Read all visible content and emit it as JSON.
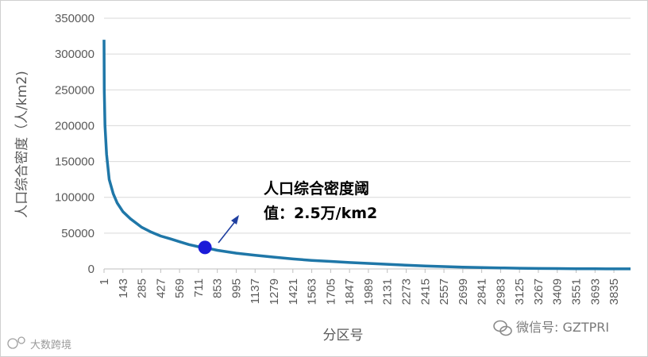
{
  "colors": {
    "line": "#1f77a8",
    "marker": "#1b1bd8",
    "arrow": "#1f3fa0",
    "grid": "#d9d9d9",
    "text": "#595959"
  },
  "chart_data": {
    "type": "line",
    "xlabel": "分区号",
    "ylabel": "人口综合密度（人/km2)",
    "ylim": [
      0,
      350000
    ],
    "yticks": [
      "0",
      "50000",
      "100000",
      "150000",
      "200000",
      "250000",
      "300000",
      "350000"
    ],
    "xticks": [
      "1",
      "143",
      "285",
      "427",
      "569",
      "711",
      "853",
      "995",
      "1137",
      "1279",
      "1421",
      "1563",
      "1705",
      "1847",
      "1989",
      "2131",
      "2273",
      "2415",
      "2557",
      "2699",
      "2841",
      "2983",
      "3125",
      "3267",
      "3409",
      "3551",
      "3693",
      "3835"
    ],
    "xlim": [
      1,
      3960
    ],
    "grid": "horizontal",
    "series": [
      {
        "x": [
          1,
          3,
          8,
          20,
          40,
          70,
          100,
          143,
          200,
          285,
          350,
          427,
          500,
          569,
          640,
          711,
          780,
          853,
          995,
          1137,
          1279,
          1421,
          1563,
          1705,
          1847,
          1989,
          2131,
          2273,
          2415,
          2557,
          2699,
          2841,
          2983,
          3125,
          3267,
          3409,
          3551,
          3693,
          3835,
          3960
        ],
        "values": [
          320000,
          250000,
          200000,
          160000,
          125000,
          105000,
          92000,
          80000,
          70000,
          58000,
          52000,
          46000,
          42000,
          38000,
          34000,
          31000,
          29000,
          26000,
          22000,
          19000,
          16500,
          14000,
          12000,
          10500,
          9000,
          7800,
          6500,
          5200,
          4200,
          3300,
          2500,
          1900,
          1400,
          1000,
          700,
          500,
          350,
          250,
          150,
          100
        ]
      }
    ],
    "highlight_point": {
      "x": 760,
      "y": 30000
    },
    "annotation": [
      "人口综合密度阈",
      "值：2.5万/km2"
    ]
  },
  "watermarks": {
    "right": "微信号: GZTPRI",
    "left": "大数跨境"
  }
}
